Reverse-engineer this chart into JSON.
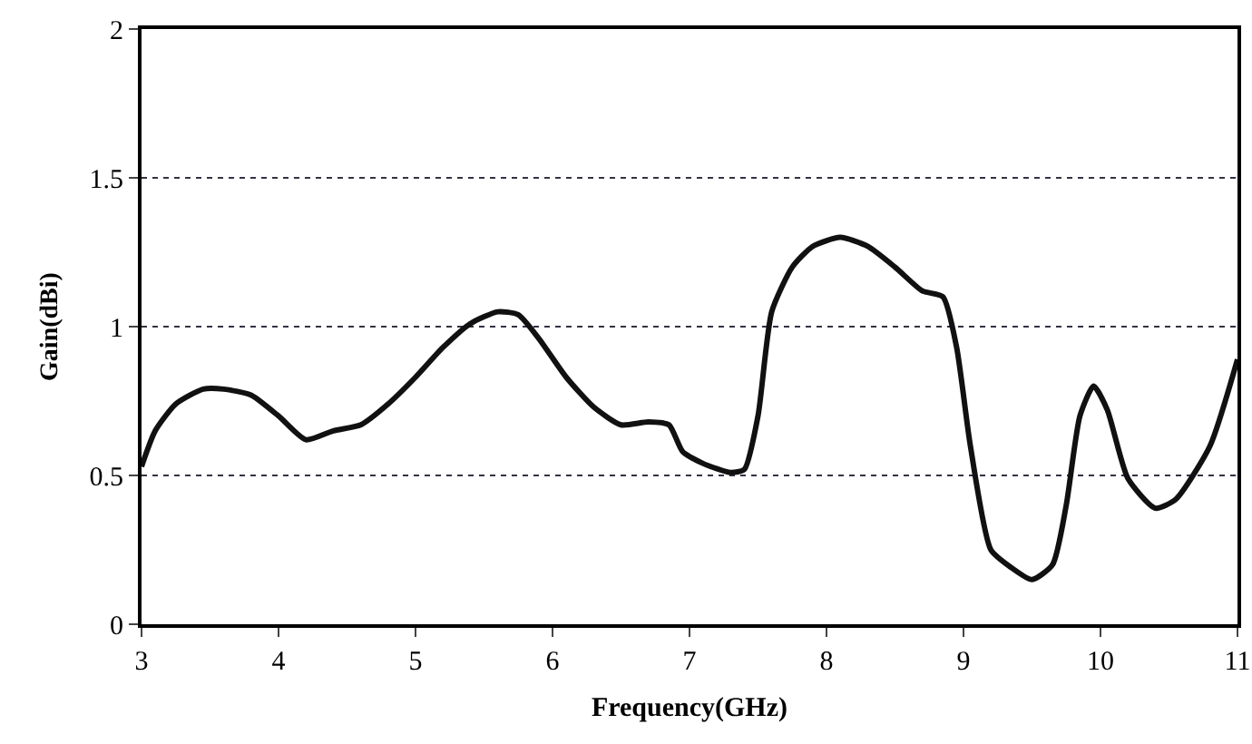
{
  "chart_data": {
    "type": "line",
    "xlabel": "Frequency(GHz)",
    "ylabel": "Gain(dBi)",
    "series": [
      {
        "color": "#111111",
        "x": [
          3.0,
          3.1,
          3.25,
          3.45,
          3.6,
          3.8,
          4.0,
          4.2,
          4.4,
          4.6,
          4.8,
          5.0,
          5.2,
          5.4,
          5.6,
          5.75,
          5.9,
          6.1,
          6.3,
          6.5,
          6.7,
          6.85,
          6.95,
          7.1,
          7.3,
          7.4,
          7.5,
          7.6,
          7.75,
          7.9,
          8.1,
          8.3,
          8.5,
          8.7,
          8.85,
          8.95,
          9.05,
          9.2,
          9.35,
          9.5,
          9.65,
          9.75,
          9.85,
          9.95,
          10.05,
          10.2,
          10.4,
          10.55,
          10.8,
          11.0
        ],
        "values": [
          0.53,
          0.65,
          0.74,
          0.79,
          0.79,
          0.77,
          0.7,
          0.62,
          0.65,
          0.67,
          0.74,
          0.83,
          0.93,
          1.01,
          1.05,
          1.04,
          0.96,
          0.83,
          0.73,
          0.67,
          0.68,
          0.67,
          0.58,
          0.54,
          0.51,
          0.52,
          0.7,
          1.05,
          1.2,
          1.27,
          1.3,
          1.27,
          1.2,
          1.12,
          1.1,
          0.93,
          0.6,
          0.25,
          0.19,
          0.15,
          0.2,
          0.4,
          0.7,
          0.8,
          0.72,
          0.49,
          0.39,
          0.42,
          0.6,
          0.89
        ]
      }
    ],
    "xlim": [
      3,
      11
    ],
    "xticks": [
      3,
      4,
      5,
      6,
      7,
      8,
      9,
      10,
      11
    ],
    "ylim": [
      0,
      2
    ],
    "yticks": [
      0,
      0.5,
      1,
      1.5,
      2
    ],
    "grid": "y",
    "line_style": "solid",
    "marker": "none"
  }
}
